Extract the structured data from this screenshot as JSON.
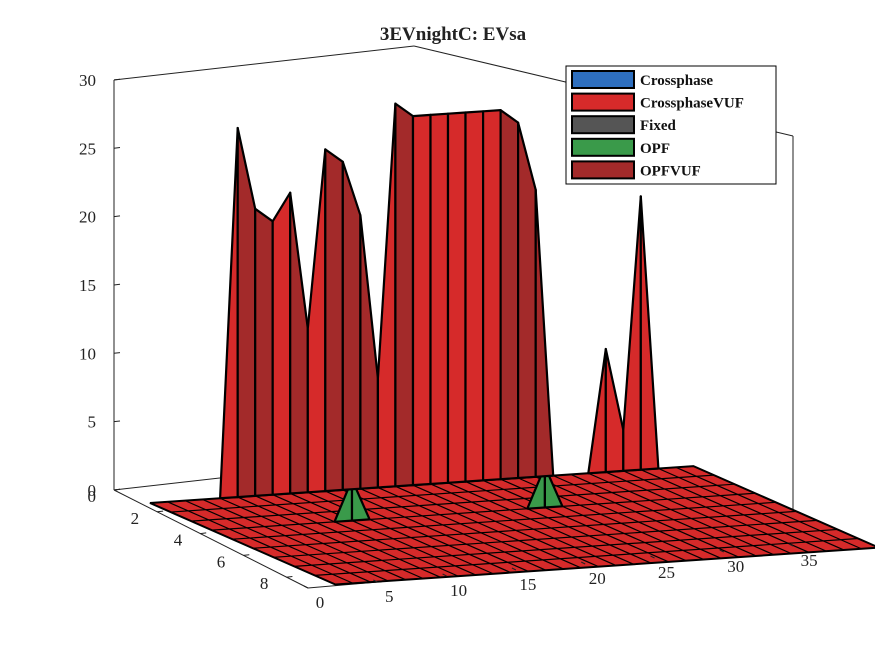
{
  "chart_data": {
    "type": "surface3d",
    "title": "3EVnightC: EVsa",
    "xlabel": "",
    "ylabel": "",
    "zlabel": "",
    "xlim": [
      0,
      35
    ],
    "ylim": [
      0,
      9
    ],
    "zlim": [
      0,
      30
    ],
    "x_ticks": [
      "0",
      "5",
      "10",
      "15",
      "20",
      "25",
      "30",
      "35"
    ],
    "y_ticks": [
      "0",
      "2",
      "4",
      "6",
      "8"
    ],
    "z_ticks": [
      "0",
      "5",
      "10",
      "15",
      "20",
      "25",
      "30"
    ],
    "legend": {
      "placement": "top-right",
      "entries": [
        {
          "name": "Crossphase",
          "color": "#2e6fbf"
        },
        {
          "name": "CrossphaseVUF",
          "color": "#d62a2a"
        },
        {
          "name": "Fixed",
          "color": "#555555"
        },
        {
          "name": "OPF",
          "color": "#3a9a4a"
        },
        {
          "name": "OPFVUF",
          "color": "#a32a2a"
        }
      ]
    },
    "series": [
      {
        "name": "OPF",
        "row": 3,
        "x": [
          7,
          8,
          9
        ],
        "values": [
          0,
          3,
          0
        ]
      },
      {
        "name": "OPF",
        "row": 3,
        "x": [
          18,
          19,
          20
        ],
        "values": [
          0,
          3,
          0
        ]
      },
      {
        "name": "OPFVUF",
        "row": 0,
        "x": [
          0,
          1,
          2,
          3,
          4,
          5,
          6,
          7,
          8,
          9,
          10,
          11,
          12,
          13,
          14,
          15,
          16,
          17,
          18,
          19,
          20,
          21,
          22,
          23,
          24,
          25,
          26,
          27,
          28,
          29,
          30,
          31
        ],
        "values": [
          0,
          0,
          0,
          0,
          0,
          27,
          21,
          20,
          22,
          12,
          25,
          24,
          20,
          8,
          28,
          27,
          27,
          27,
          27,
          27,
          27,
          26,
          21,
          0,
          0,
          0,
          0,
          0,
          0,
          0,
          0,
          0
        ]
      },
      {
        "name": "CrossphaseVUF",
        "row": 0,
        "x": [
          0,
          1,
          2,
          3,
          4,
          5,
          6,
          7,
          8,
          9,
          10,
          11,
          12,
          13,
          14,
          15,
          16,
          17,
          18,
          19,
          20,
          21,
          22,
          23,
          24,
          25,
          26,
          27,
          28,
          29,
          30,
          31
        ],
        "values": [
          0,
          0,
          0,
          0,
          0,
          0,
          0,
          0,
          0,
          0,
          0,
          0,
          0,
          0,
          0,
          0,
          0,
          0,
          0,
          0,
          0,
          0,
          0,
          0,
          0,
          0,
          9,
          3,
          20,
          0,
          0,
          0
        ]
      }
    ]
  }
}
